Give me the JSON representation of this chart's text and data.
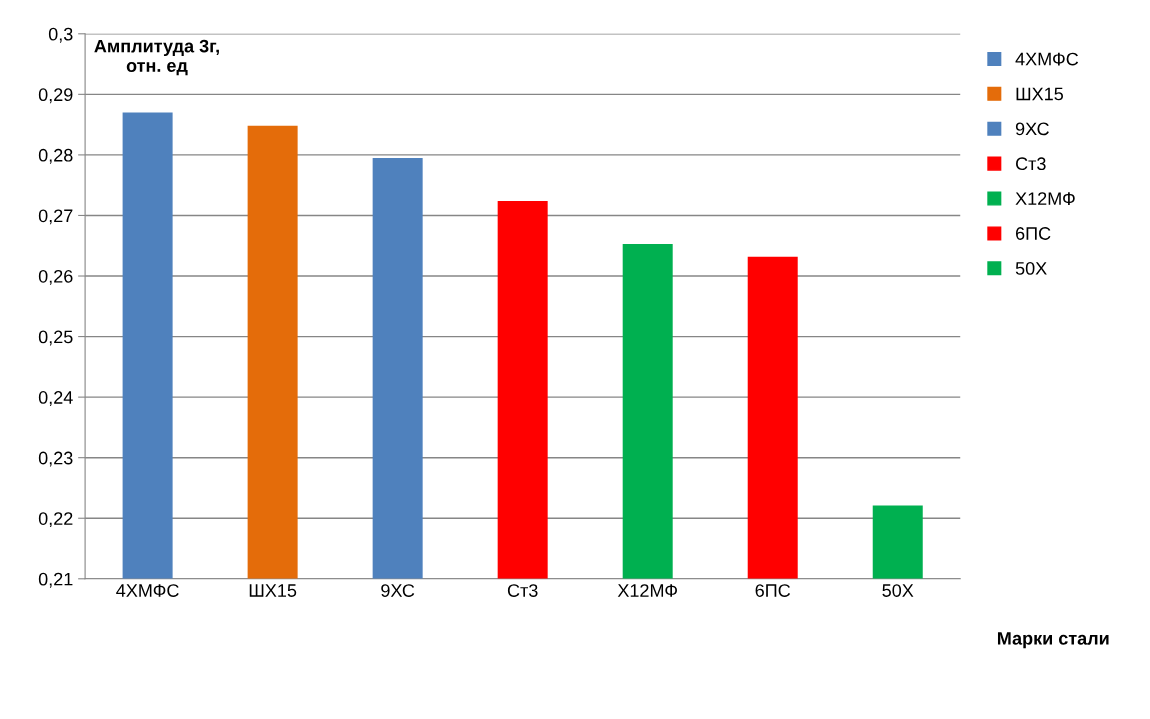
{
  "chart_data": {
    "type": "bar",
    "ylabel": "Амплитуда 3г,\nотн. ед",
    "xlabel": "Марки стали",
    "categories": [
      "4ХМФС",
      "ШХ15",
      "9ХС",
      "Ст3",
      "Х12МФ",
      "6ПС",
      "50Х"
    ],
    "stacked": true,
    "series": [
      {
        "name": "4ХМФС",
        "color": "#4f81bd",
        "values": [
          0.287,
          null,
          null,
          null,
          null,
          null,
          null
        ]
      },
      {
        "name": "ШХ15",
        "color": "#e46c0a",
        "values": [
          null,
          0.2848,
          null,
          null,
          null,
          null,
          null
        ]
      },
      {
        "name": "9ХС",
        "color": "#4f81bd",
        "values": [
          null,
          null,
          0.2795,
          null,
          null,
          null,
          null
        ]
      },
      {
        "name": "Ст3",
        "color": "#ff0000",
        "values": [
          null,
          null,
          null,
          0.2724,
          null,
          null,
          null
        ]
      },
      {
        "name": "Х12МФ",
        "color": "#00b050",
        "values": [
          null,
          null,
          null,
          null,
          0.2653,
          null,
          null
        ]
      },
      {
        "name": "6ПС",
        "color": "#ff0000",
        "values": [
          null,
          null,
          null,
          null,
          null,
          0.2632,
          null
        ]
      },
      {
        "name": "50Х",
        "color": "#00b050",
        "values": [
          null,
          null,
          null,
          null,
          null,
          null,
          0.2221
        ]
      }
    ],
    "ylim": [
      0.21,
      0.3
    ],
    "yticks": [
      {
        "value": 0.21,
        "label": "0,21"
      },
      {
        "value": 0.22,
        "label": "0,22"
      },
      {
        "value": 0.23,
        "label": "0,23"
      },
      {
        "value": 0.24,
        "label": "0,24"
      },
      {
        "value": 0.25,
        "label": "0,25"
      },
      {
        "value": 0.26,
        "label": "0,26"
      },
      {
        "value": 0.27,
        "label": "0,27"
      },
      {
        "value": 0.28,
        "label": "0,28"
      },
      {
        "value": 0.29,
        "label": "0,29"
      },
      {
        "value": 0.3,
        "label": "0,3"
      }
    ],
    "grid": "y",
    "legend": "right"
  }
}
